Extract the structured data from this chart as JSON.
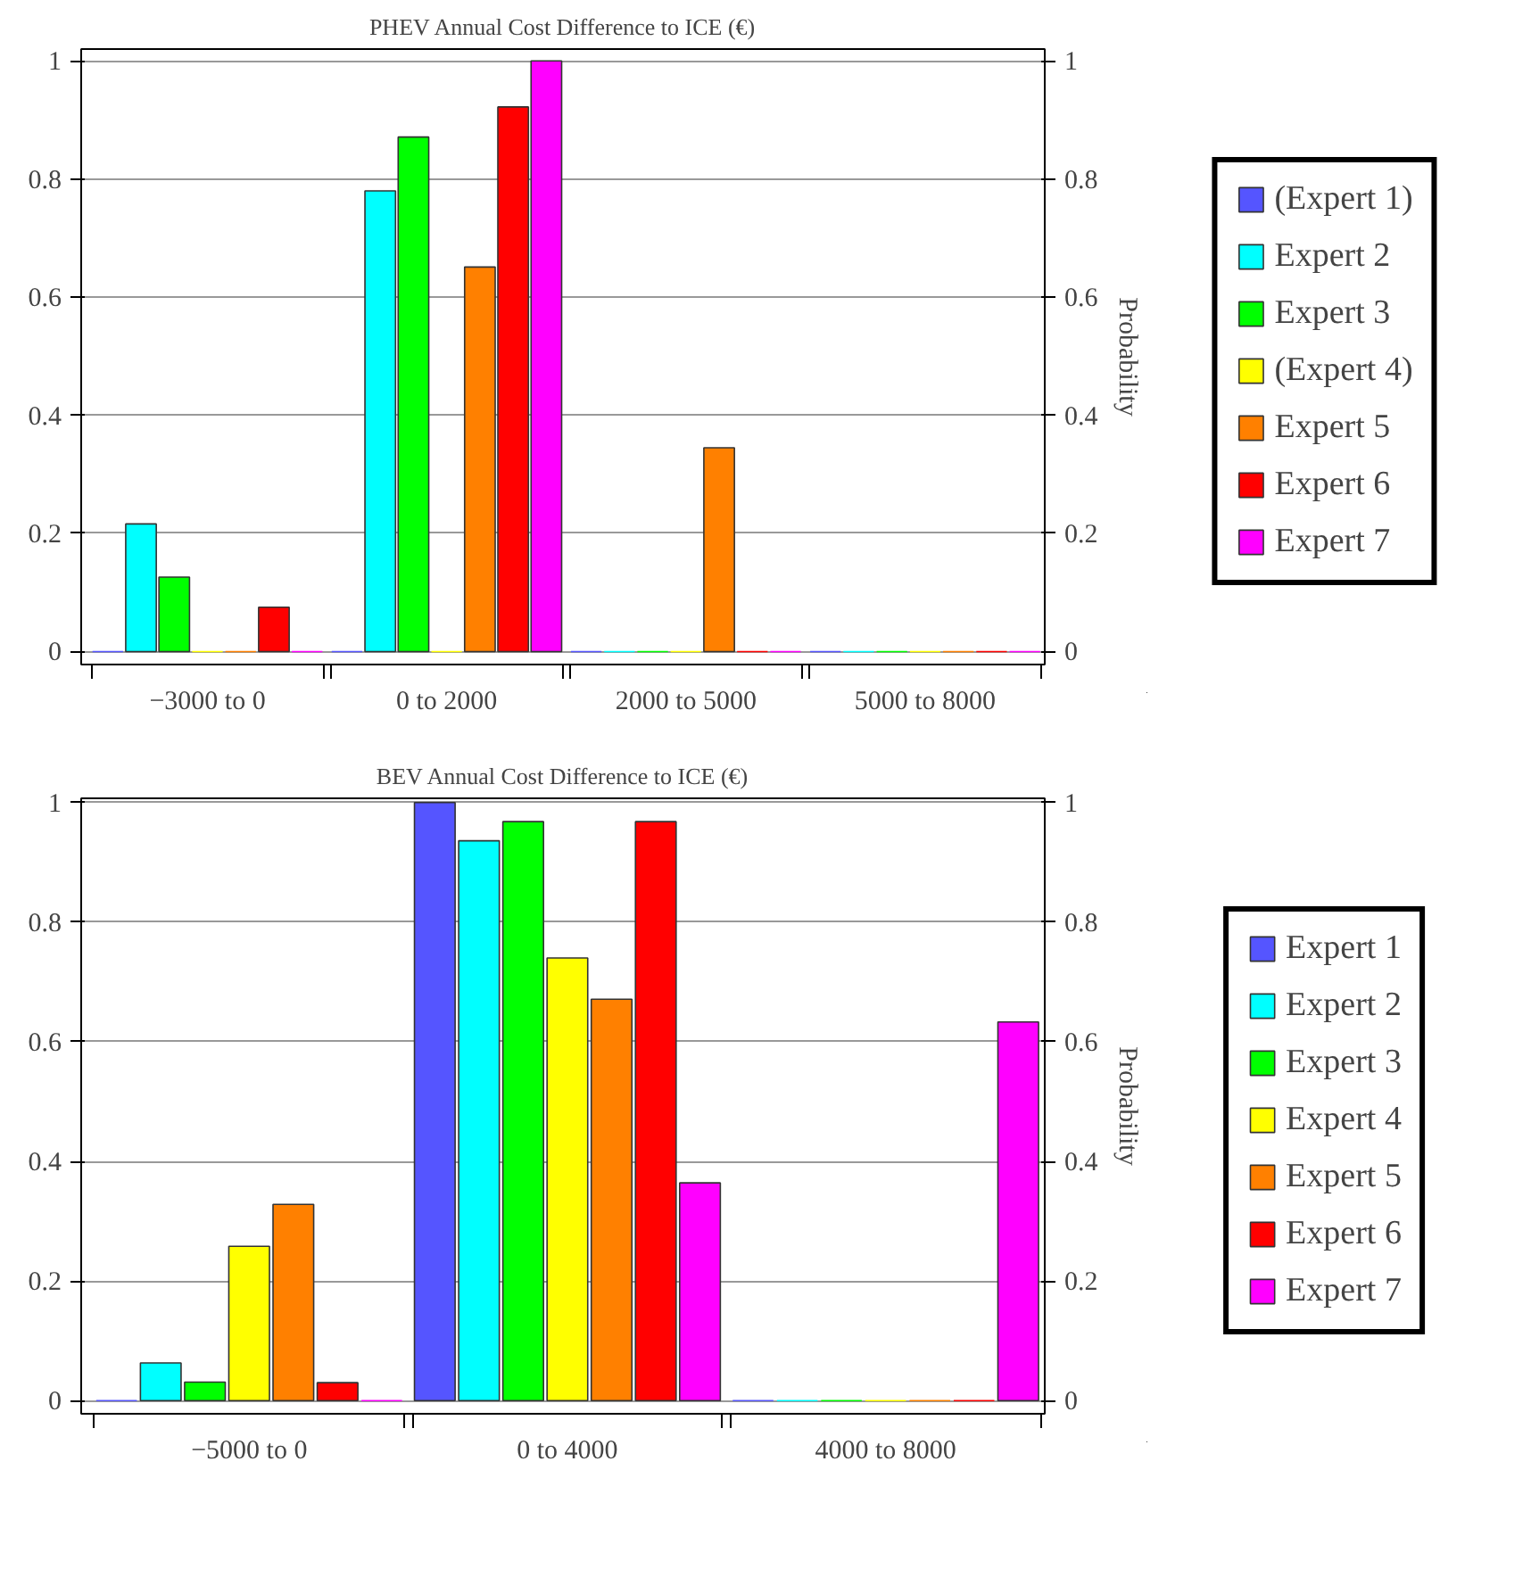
{
  "chart_data": [
    {
      "type": "bar",
      "title": "PHEV Annual Cost Difference to ICE (€)",
      "y2label": "Probability",
      "categories": [
        "−3000 to 0",
        "0 to 2000",
        "2000 to 5000",
        "5000 to 8000"
      ],
      "ylim": [
        -0.022,
        1.02
      ],
      "yticks": [
        0,
        0.2,
        0.4,
        0.6,
        0.8,
        1
      ],
      "y2lim": [
        -0.022,
        1.02
      ],
      "y2ticks": [
        0,
        0.2,
        0.4,
        0.6,
        0.8,
        1
      ],
      "grid": "y",
      "legend": "right",
      "series": [
        {
          "name": "(Expert 1)",
          "color": "#5555ff",
          "values": [
            0,
            0,
            0,
            0
          ]
        },
        {
          "name": "Expert 2",
          "color": "#00ffff",
          "values": [
            0.216,
            0.78,
            0,
            0
          ]
        },
        {
          "name": "Expert 3",
          "color": "#00ff00",
          "values": [
            0.126,
            0.871,
            0,
            0
          ]
        },
        {
          "name": "(Expert 4)",
          "color": "#ffff00",
          "values": [
            0,
            0,
            0,
            0
          ]
        },
        {
          "name": "Expert 5",
          "color": "#ff8000",
          "values": [
            0,
            0.651,
            0.345,
            0
          ]
        },
        {
          "name": "Expert 6",
          "color": "#ff0000",
          "values": [
            0.075,
            0.922,
            0,
            0
          ]
        },
        {
          "name": "Expert 7",
          "color": "#ff00ff",
          "values": [
            0,
            1.0,
            0,
            0
          ]
        }
      ]
    },
    {
      "type": "bar",
      "title": "BEV Annual Cost Difference to ICE (€)",
      "y2label": "Probability",
      "categories": [
        "−5000 to 0",
        "0 to 4000",
        "4000 to 8000"
      ],
      "ylim": [
        -0.022,
        1.007
      ],
      "yticks": [
        0,
        0.2,
        0.4,
        0.6,
        0.8,
        1
      ],
      "y2lim": [
        -0.022,
        1.007
      ],
      "y2ticks": [
        0,
        0.2,
        0.4,
        0.6,
        0.8,
        1
      ],
      "grid": "y",
      "legend": "right",
      "series": [
        {
          "name": "Expert 1",
          "color": "#5555ff",
          "values": [
            0,
            1.0,
            0
          ]
        },
        {
          "name": "Expert 2",
          "color": "#00ffff",
          "values": [
            0.063,
            0.936,
            0
          ]
        },
        {
          "name": "Expert 3",
          "color": "#00ff00",
          "values": [
            0.031,
            0.968,
            0
          ]
        },
        {
          "name": "Expert 4",
          "color": "#ffff00",
          "values": [
            0.258,
            0.74,
            0
          ]
        },
        {
          "name": "Expert 5",
          "color": "#ff8000",
          "values": [
            0.328,
            0.671,
            0
          ]
        },
        {
          "name": "Expert 6",
          "color": "#ff0000",
          "values": [
            0.03,
            0.968,
            0
          ]
        },
        {
          "name": "Expert 7",
          "color": "#ff00ff",
          "values": [
            0,
            0.364,
            0.633
          ]
        }
      ]
    }
  ]
}
